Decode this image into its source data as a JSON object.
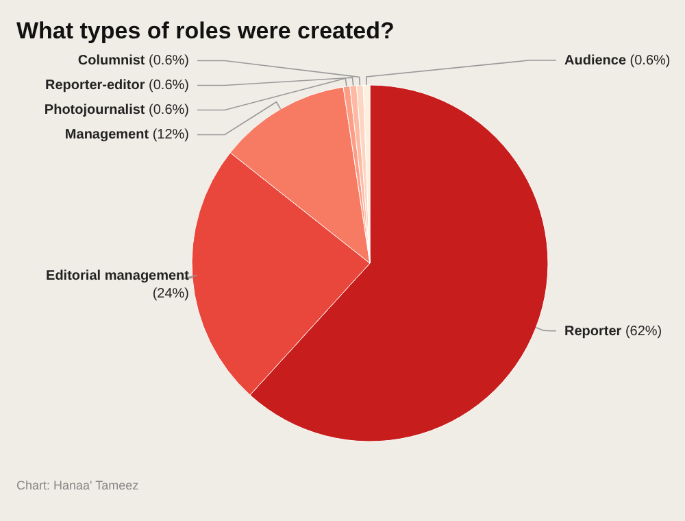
{
  "chart_data": {
    "type": "pie",
    "title": "What types of roles were created?",
    "categories": [
      "Reporter",
      "Editorial management",
      "Management",
      "Photojournalist",
      "Reporter-editor",
      "Columnist",
      "Audience"
    ],
    "values": [
      62,
      24,
      12,
      0.6,
      0.6,
      0.6,
      0.6
    ],
    "value_labels": [
      "(62%)",
      "(24%)",
      "(12%)",
      "(0.6%)",
      "(0.6%)",
      "(0.6%)",
      "(0.6%)"
    ],
    "colors": [
      "#c71e1d",
      "#e9473b",
      "#f77a63",
      "#fc9d86",
      "#fdb9a3",
      "#fdd5c3",
      "#fef0e0"
    ],
    "annotations": [
      "Chart: Hanaa' Tameez"
    ]
  }
}
